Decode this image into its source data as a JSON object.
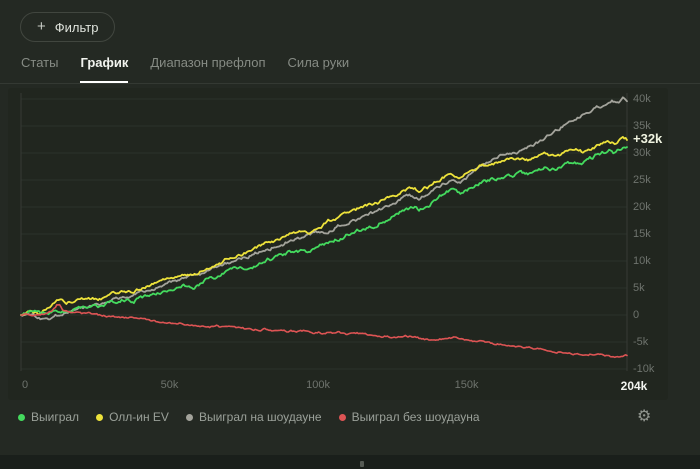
{
  "filter_button": {
    "label": "Фильтр"
  },
  "icons": {
    "plus": "+",
    "gear": "⚙"
  },
  "tabs": [
    {
      "label": "Статы",
      "active": false
    },
    {
      "label": "График",
      "active": true
    },
    {
      "label": "Диапазон префлоп",
      "active": false
    },
    {
      "label": "Сила руки",
      "active": false
    }
  ],
  "chart_data": {
    "type": "line",
    "title": "",
    "xlabel": "",
    "ylabel": "",
    "x_unit": "hands",
    "xlim_hands_k": [
      0,
      204
    ],
    "ylim_k": [
      -12,
      42
    ],
    "grid": "horizontal",
    "legend_position": "bottom",
    "current_value_label": "+32k",
    "current_value_k": 32.4,
    "x_ticks": [
      {
        "hands_k": 0,
        "label": "0",
        "emphasis": false
      },
      {
        "hands_k": 50,
        "label": "50k",
        "emphasis": false
      },
      {
        "hands_k": 100,
        "label": "100k",
        "emphasis": false
      },
      {
        "hands_k": 150,
        "label": "150k",
        "emphasis": false
      },
      {
        "hands_k": 204,
        "label": "204k",
        "emphasis": true
      }
    ],
    "y_ticks": [
      {
        "value_k": 40,
        "label": "40k"
      },
      {
        "value_k": 35,
        "label": "35k"
      },
      {
        "value_k": 30,
        "label": "30k"
      },
      {
        "value_k": 25,
        "label": "25k"
      },
      {
        "value_k": 20,
        "label": "20k"
      },
      {
        "value_k": 15,
        "label": "15k"
      },
      {
        "value_k": 10,
        "label": "10k"
      },
      {
        "value_k": 5,
        "label": "5k"
      },
      {
        "value_k": 0,
        "label": "0"
      },
      {
        "value_k": -5,
        "label": "-5k"
      },
      {
        "value_k": -10,
        "label": "-10k"
      }
    ],
    "series": [
      {
        "name": "Выиграл на шоудауне",
        "color": "#a3a39b",
        "points": [
          [
            0,
            0
          ],
          [
            3,
            0.3
          ],
          [
            6,
            -0.5
          ],
          [
            8,
            -0.8
          ],
          [
            10,
            -0.5
          ],
          [
            13,
            0.2
          ],
          [
            16,
            0.6
          ],
          [
            20,
            1.3
          ],
          [
            24,
            1.8
          ],
          [
            28,
            2.4
          ],
          [
            32,
            3.1
          ],
          [
            36,
            3.6
          ],
          [
            40,
            4.3
          ],
          [
            44,
            5.0
          ],
          [
            48,
            5.6
          ],
          [
            52,
            6.3
          ],
          [
            56,
            6.9
          ],
          [
            60,
            7.6
          ],
          [
            64,
            8.4
          ],
          [
            68,
            9.2
          ],
          [
            72,
            10.0
          ],
          [
            76,
            10.8
          ],
          [
            80,
            11.7
          ],
          [
            84,
            12.4
          ],
          [
            88,
            13.2
          ],
          [
            92,
            13.9
          ],
          [
            96,
            14.5
          ],
          [
            100,
            15.2
          ],
          [
            104,
            15.7
          ],
          [
            108,
            16.7
          ],
          [
            112,
            17.6
          ],
          [
            116,
            18.4
          ],
          [
            120,
            19.3
          ],
          [
            124,
            20.4
          ],
          [
            128,
            21.6
          ],
          [
            131,
            22.0
          ],
          [
            134,
            21.7
          ],
          [
            137,
            22.5
          ],
          [
            140,
            23.5
          ],
          [
            143,
            24.6
          ],
          [
            145,
            25.3
          ],
          [
            148,
            24.8
          ],
          [
            151,
            26.0
          ],
          [
            155,
            27.4
          ],
          [
            158,
            28.3
          ],
          [
            161,
            29.6
          ],
          [
            164,
            30.2
          ],
          [
            167,
            30.0
          ],
          [
            170,
            30.8
          ],
          [
            173,
            31.6
          ],
          [
            176,
            32.5
          ],
          [
            179,
            33.6
          ],
          [
            182,
            34.8
          ],
          [
            185,
            35.9
          ],
          [
            188,
            36.6
          ],
          [
            191,
            37.5
          ],
          [
            194,
            38.4
          ],
          [
            197,
            39.0
          ],
          [
            199,
            39.6
          ],
          [
            201,
            39.3
          ],
          [
            202.5,
            40.1
          ],
          [
            204,
            39.6
          ]
        ]
      },
      {
        "name": "Олл-ин EV",
        "color": "#ede23b",
        "points": [
          [
            0,
            0
          ],
          [
            3,
            0.7
          ],
          [
            6,
            0.2
          ],
          [
            9,
            1.1
          ],
          [
            12,
            2.7
          ],
          [
            13.5,
            3.2
          ],
          [
            15,
            2.0
          ],
          [
            18,
            2.5
          ],
          [
            22,
            3.1
          ],
          [
            26,
            2.9
          ],
          [
            30,
            3.8
          ],
          [
            34,
            4.5
          ],
          [
            38,
            4.3
          ],
          [
            42,
            5.3
          ],
          [
            46,
            6.1
          ],
          [
            50,
            6.9
          ],
          [
            54,
            7.7
          ],
          [
            58,
            7.4
          ],
          [
            62,
            8.6
          ],
          [
            66,
            9.5
          ],
          [
            70,
            10.4
          ],
          [
            74,
            11.3
          ],
          [
            78,
            12.1
          ],
          [
            82,
            13.1
          ],
          [
            86,
            13.8
          ],
          [
            90,
            14.7
          ],
          [
            94,
            15.4
          ],
          [
            97,
            15.1
          ],
          [
            100,
            16.2
          ],
          [
            104,
            17.4
          ],
          [
            108,
            18.4
          ],
          [
            112,
            19.3
          ],
          [
            116,
            20.1
          ],
          [
            120,
            20.9
          ],
          [
            124,
            21.9
          ],
          [
            128,
            22.9
          ],
          [
            131,
            23.3
          ],
          [
            134,
            23.0
          ],
          [
            137,
            23.8
          ],
          [
            140,
            24.7
          ],
          [
            143,
            25.7
          ],
          [
            145,
            26.1
          ],
          [
            148,
            25.6
          ],
          [
            151,
            26.6
          ],
          [
            155,
            27.6
          ],
          [
            158,
            28.1
          ],
          [
            161,
            28.5
          ],
          [
            165,
            28.8
          ],
          [
            168,
            29.1
          ],
          [
            171,
            28.8
          ],
          [
            174,
            29.4
          ],
          [
            177,
            29.8
          ],
          [
            180,
            29.5
          ],
          [
            183,
            30.1
          ],
          [
            186,
            30.5
          ],
          [
            189,
            30.2
          ],
          [
            192,
            30.9
          ],
          [
            195,
            31.5
          ],
          [
            198,
            32.0
          ],
          [
            200,
            31.7
          ],
          [
            202,
            32.6
          ],
          [
            204,
            32.4
          ]
        ]
      },
      {
        "name": "Выиграл",
        "color": "#44da5e",
        "points": [
          [
            0,
            0
          ],
          [
            3,
            0.8
          ],
          [
            6,
            0.1
          ],
          [
            9,
            0.5
          ],
          [
            12,
            0.9
          ],
          [
            15,
            0.6
          ],
          [
            18,
            1.1
          ],
          [
            22,
            1.6
          ],
          [
            26,
            1.4
          ],
          [
            30,
            2.2
          ],
          [
            34,
            2.8
          ],
          [
            38,
            2.6
          ],
          [
            42,
            3.5
          ],
          [
            46,
            4.2
          ],
          [
            50,
            4.8
          ],
          [
            54,
            5.5
          ],
          [
            58,
            5.2
          ],
          [
            62,
            6.3
          ],
          [
            66,
            7.0
          ],
          [
            70,
            7.8
          ],
          [
            74,
            8.6
          ],
          [
            78,
            9.2
          ],
          [
            82,
            10.1
          ],
          [
            86,
            10.6
          ],
          [
            90,
            11.4
          ],
          [
            94,
            12.0
          ],
          [
            97,
            11.7
          ],
          [
            100,
            12.6
          ],
          [
            104,
            13.5
          ],
          [
            108,
            14.4
          ],
          [
            112,
            15.2
          ],
          [
            116,
            15.9
          ],
          [
            120,
            16.7
          ],
          [
            124,
            18.0
          ],
          [
            128,
            19.4
          ],
          [
            131,
            19.8
          ],
          [
            134,
            19.6
          ],
          [
            137,
            20.4
          ],
          [
            140,
            21.5
          ],
          [
            143,
            22.8
          ],
          [
            145,
            23.1
          ],
          [
            148,
            22.2
          ],
          [
            151,
            23.5
          ],
          [
            155,
            24.6
          ],
          [
            158,
            25.2
          ],
          [
            161,
            25.6
          ],
          [
            165,
            25.9
          ],
          [
            168,
            26.3
          ],
          [
            171,
            26.0
          ],
          [
            174,
            26.8
          ],
          [
            177,
            27.3
          ],
          [
            180,
            27.0
          ],
          [
            183,
            27.8
          ],
          [
            186,
            28.3
          ],
          [
            189,
            28.0
          ],
          [
            192,
            29.0
          ],
          [
            195,
            29.8
          ],
          [
            198,
            30.4
          ],
          [
            200,
            30.0
          ],
          [
            202,
            30.8
          ],
          [
            204,
            31.1
          ]
        ]
      },
      {
        "name": "Выиграл без шоудауна",
        "color": "#dd5454",
        "points": [
          [
            0,
            0
          ],
          [
            2,
            0.3
          ],
          [
            4,
            -0.1
          ],
          [
            6,
            0.2
          ],
          [
            8,
            0.0
          ],
          [
            10,
            0.4
          ],
          [
            12,
            1.8
          ],
          [
            13,
            1.9
          ],
          [
            14,
            0.8
          ],
          [
            16,
            0.4
          ],
          [
            18,
            0.5
          ],
          [
            20,
            0.3
          ],
          [
            23,
            0.4
          ],
          [
            26,
            0.1
          ],
          [
            29,
            -0.2
          ],
          [
            32,
            -0.3
          ],
          [
            35,
            -0.6
          ],
          [
            38,
            -0.5
          ],
          [
            42,
            -0.9
          ],
          [
            46,
            -1.2
          ],
          [
            50,
            -1.5
          ],
          [
            54,
            -1.7
          ],
          [
            58,
            -1.9
          ],
          [
            62,
            -2.1
          ],
          [
            66,
            -2.0
          ],
          [
            70,
            -2.3
          ],
          [
            74,
            -2.5
          ],
          [
            78,
            -2.7
          ],
          [
            82,
            -2.6
          ],
          [
            86,
            -2.9
          ],
          [
            90,
            -3.0
          ],
          [
            94,
            -2.8
          ],
          [
            98,
            -3.1
          ],
          [
            102,
            -3.3
          ],
          [
            106,
            -3.2
          ],
          [
            110,
            -3.5
          ],
          [
            114,
            -3.4
          ],
          [
            118,
            -3.7
          ],
          [
            122,
            -3.9
          ],
          [
            126,
            -4.1
          ],
          [
            130,
            -4.0
          ],
          [
            134,
            -4.3
          ],
          [
            138,
            -4.5
          ],
          [
            142,
            -4.4
          ],
          [
            146,
            -4.2
          ],
          [
            150,
            -4.6
          ],
          [
            154,
            -4.9
          ],
          [
            158,
            -5.2
          ],
          [
            162,
            -5.5
          ],
          [
            166,
            -5.8
          ],
          [
            170,
            -6.1
          ],
          [
            174,
            -6.3
          ],
          [
            178,
            -6.6
          ],
          [
            182,
            -6.9
          ],
          [
            186,
            -7.1
          ],
          [
            190,
            -7.3
          ],
          [
            194,
            -7.2
          ],
          [
            198,
            -7.6
          ],
          [
            201,
            -7.8
          ],
          [
            204,
            -7.5
          ]
        ]
      }
    ],
    "legend_order": [
      "Выиграл",
      "Олл-ин EV",
      "Выиграл на шоудауне",
      "Выиграл без шоудауна"
    ]
  }
}
